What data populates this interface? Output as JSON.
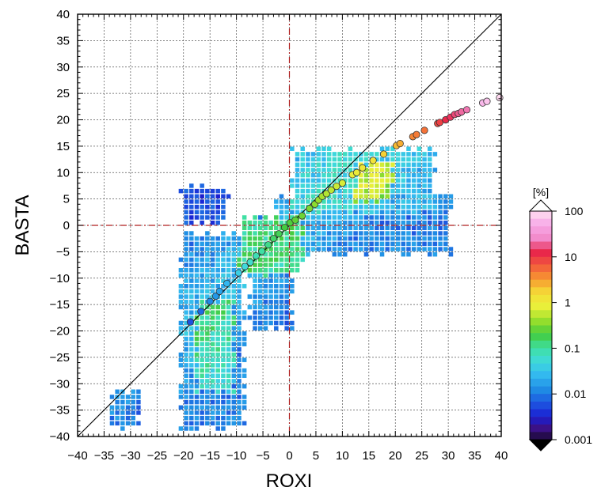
{
  "chart_data": {
    "type": "heatmap",
    "title": "",
    "xlabel": "ROXI",
    "ylabel": "BASTA",
    "xlim": [
      -40,
      40
    ],
    "ylim": [
      -40,
      40
    ],
    "xticks": [
      "−40",
      "−35",
      "−30",
      "−25",
      "−20",
      "−15",
      "−10",
      "−5",
      "0",
      "5",
      "10",
      "15",
      "20",
      "25",
      "30",
      "35",
      "40"
    ],
    "yticks": [
      "40",
      "35",
      "30",
      "25",
      "20",
      "15",
      "10",
      "5",
      "0",
      "−5",
      "−10",
      "−15",
      "−20",
      "−25",
      "−30",
      "−35",
      "−40"
    ],
    "grid": true,
    "reference_lines": {
      "identity": true,
      "x_zero": true,
      "y_zero": true
    },
    "colorbar": {
      "unit": "[%]",
      "labels": [
        "100",
        "10",
        "1",
        "0.1",
        "0.01",
        "0.001"
      ],
      "scale": "log",
      "range": [
        0.001,
        100
      ]
    },
    "density_regions": [
      {
        "x": [
          -21,
          -8
        ],
        "y": [
          -39,
          -1
        ],
        "level": 0.01
      },
      {
        "x": [
          -21,
          -11
        ],
        "y": [
          0,
          8
        ],
        "level": 0.005
      },
      {
        "x": [
          -8,
          1
        ],
        "y": [
          -20,
          2
        ],
        "level": 0.008
      },
      {
        "x": [
          -3,
          31
        ],
        "y": [
          -6,
          6
        ],
        "level": 0.01
      },
      {
        "x": [
          0,
          28
        ],
        "y": [
          2,
          15
        ],
        "level": 0.02
      },
      {
        "x": [
          12,
          20
        ],
        "y": [
          4,
          12
        ],
        "level": 0.3
      },
      {
        "x": [
          -18,
          -10
        ],
        "y": [
          -32,
          -14
        ],
        "level": 0.05
      },
      {
        "x": [
          -10,
          3
        ],
        "y": [
          -10,
          2
        ],
        "level": 0.05
      },
      {
        "x": [
          -34,
          -28
        ],
        "y": [
          -39,
          -31
        ],
        "level": 0.005
      }
    ],
    "mean_points": [
      {
        "x": -18.7,
        "y": -18.3,
        "value": 0.006
      },
      {
        "x": -16.7,
        "y": -16.3,
        "value": 0.008
      },
      {
        "x": -15.0,
        "y": -14.4,
        "value": 0.012
      },
      {
        "x": -13.9,
        "y": -13.4,
        "value": 0.015
      },
      {
        "x": -13.2,
        "y": -12.5,
        "value": 0.018
      },
      {
        "x": -11.8,
        "y": -11.0,
        "value": 0.025
      },
      {
        "x": -9.6,
        "y": -9.0,
        "value": 0.04
      },
      {
        "x": -8.4,
        "y": -7.8,
        "value": 0.05
      },
      {
        "x": -7.4,
        "y": -7.0,
        "value": 0.06
      },
      {
        "x": -6.3,
        "y": -5.8,
        "value": 0.08
      },
      {
        "x": -5.2,
        "y": -4.9,
        "value": 0.1
      },
      {
        "x": -4.0,
        "y": -3.7,
        "value": 0.12
      },
      {
        "x": -3.0,
        "y": -2.5,
        "value": 0.15
      },
      {
        "x": -2.0,
        "y": -1.6,
        "value": 0.17
      },
      {
        "x": -0.9,
        "y": -0.4,
        "value": 0.2
      },
      {
        "x": 0.1,
        "y": 0.5,
        "value": 0.22
      },
      {
        "x": 1.1,
        "y": 1.0,
        "value": 0.25
      },
      {
        "x": 2.4,
        "y": 1.8,
        "value": 0.28
      },
      {
        "x": 3.8,
        "y": 3.2,
        "value": 0.32
      },
      {
        "x": 4.8,
        "y": 4.0,
        "value": 0.36
      },
      {
        "x": 5.5,
        "y": 4.8,
        "value": 0.4
      },
      {
        "x": 6.2,
        "y": 5.5,
        "value": 0.45
      },
      {
        "x": 7.0,
        "y": 6.0,
        "value": 0.5
      },
      {
        "x": 7.9,
        "y": 6.7,
        "value": 0.55
      },
      {
        "x": 8.9,
        "y": 7.4,
        "value": 0.62
      },
      {
        "x": 10.0,
        "y": 8.0,
        "value": 0.7
      },
      {
        "x": 11.9,
        "y": 9.6,
        "value": 0.85
      },
      {
        "x": 12.7,
        "y": 10.0,
        "value": 0.95
      },
      {
        "x": 13.8,
        "y": 10.9,
        "value": 1.1
      },
      {
        "x": 15.8,
        "y": 12.3,
        "value": 1.3
      },
      {
        "x": 17.8,
        "y": 13.5,
        "value": 1.8
      },
      {
        "x": 20.2,
        "y": 15.1,
        "value": 2.3
      },
      {
        "x": 20.9,
        "y": 15.5,
        "value": 2.6
      },
      {
        "x": 23.3,
        "y": 16.8,
        "value": 4
      },
      {
        "x": 24.0,
        "y": 17.2,
        "value": 4.5
      },
      {
        "x": 25.5,
        "y": 18.0,
        "value": 5
      },
      {
        "x": 28.0,
        "y": 19.3,
        "value": 8
      },
      {
        "x": 28.4,
        "y": 19.5,
        "value": 9
      },
      {
        "x": 29.5,
        "y": 20.0,
        "value": 12
      },
      {
        "x": 30.4,
        "y": 20.5,
        "value": 14
      },
      {
        "x": 31.2,
        "y": 21.0,
        "value": 16
      },
      {
        "x": 31.9,
        "y": 21.2,
        "value": 18
      },
      {
        "x": 32.5,
        "y": 21.5,
        "value": 20
      },
      {
        "x": 33.5,
        "y": 21.9,
        "value": 22
      },
      {
        "x": 36.5,
        "y": 23.2,
        "value": 60
      },
      {
        "x": 37.3,
        "y": 23.5,
        "value": 70
      },
      {
        "x": 39.7,
        "y": 24.2,
        "value": 90
      }
    ]
  }
}
